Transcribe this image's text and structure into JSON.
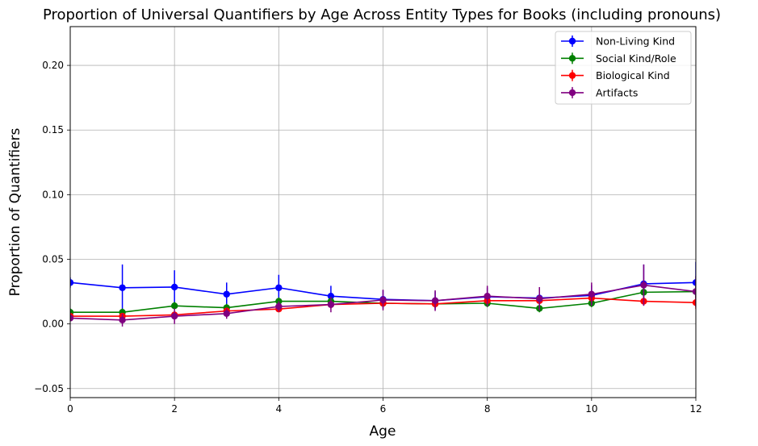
{
  "chart_data": {
    "type": "line",
    "title": "Proportion of Universal Quantifiers by Age Across Entity Types for Books (including pronouns)",
    "xlabel": "Age",
    "ylabel": "Proportion of Quantifiers",
    "xlim": [
      0,
      12
    ],
    "ylim": [
      -0.057,
      0.23
    ],
    "xticks": [
      0,
      2,
      4,
      6,
      8,
      10,
      12
    ],
    "xtick_labels": [
      "0",
      "2",
      "4",
      "6",
      "8",
      "10",
      "12"
    ],
    "yticks": [
      -0.05,
      0,
      0.05,
      0.1,
      0.15,
      0.2
    ],
    "ytick_labels": [
      "−0.05",
      "0.00",
      "0.05",
      "0.10",
      "0.15",
      "0.20"
    ],
    "grid": true,
    "legend_position": "top-right",
    "x": [
      0,
      1,
      2,
      3,
      4,
      5,
      6,
      7,
      8,
      9,
      10,
      11,
      12
    ],
    "series": [
      {
        "name": "Non-Living Kind",
        "color": "#0000ff",
        "values": [
          0.032,
          0.028,
          0.0285,
          0.023,
          0.028,
          0.0215,
          0.019,
          0.018,
          0.021,
          0.02,
          0.022,
          0.031,
          0.032
        ],
        "errors": [
          0.004,
          0.018,
          0.013,
          0.009,
          0.01,
          0.008,
          0.007,
          0.007,
          0.007,
          0.008,
          0.008,
          0.015,
          0.016
        ]
      },
      {
        "name": "Social Kind/Role",
        "color": "#008000",
        "values": [
          0.009,
          0.009,
          0.014,
          0.0125,
          0.0175,
          0.0175,
          0.016,
          0.0155,
          0.016,
          0.012,
          0.016,
          0.0245,
          0.025
        ],
        "errors": [
          0.003,
          0.003,
          0.003,
          0.003,
          0.003,
          0.003,
          0.003,
          0.003,
          0.003,
          0.003,
          0.003,
          0.004,
          0.005
        ]
      },
      {
        "name": "Biological Kind",
        "color": "#ff0000",
        "values": [
          0.006,
          0.006,
          0.007,
          0.01,
          0.0115,
          0.015,
          0.016,
          0.0155,
          0.018,
          0.018,
          0.02,
          0.0175,
          0.0165
        ],
        "errors": [
          0.002,
          0.002,
          0.002,
          0.002,
          0.002,
          0.003,
          0.003,
          0.003,
          0.003,
          0.003,
          0.003,
          0.003,
          0.005
        ]
      },
      {
        "name": "Artifacts",
        "color": "#800080",
        "values": [
          0.0045,
          0.003,
          0.006,
          0.008,
          0.0135,
          0.015,
          0.0185,
          0.018,
          0.0215,
          0.0195,
          0.023,
          0.03,
          0.025
        ],
        "errors": [
          0.002,
          0.005,
          0.006,
          0.004,
          0.004,
          0.006,
          0.008,
          0.008,
          0.008,
          0.009,
          0.009,
          0.016,
          0.012
        ]
      }
    ]
  }
}
